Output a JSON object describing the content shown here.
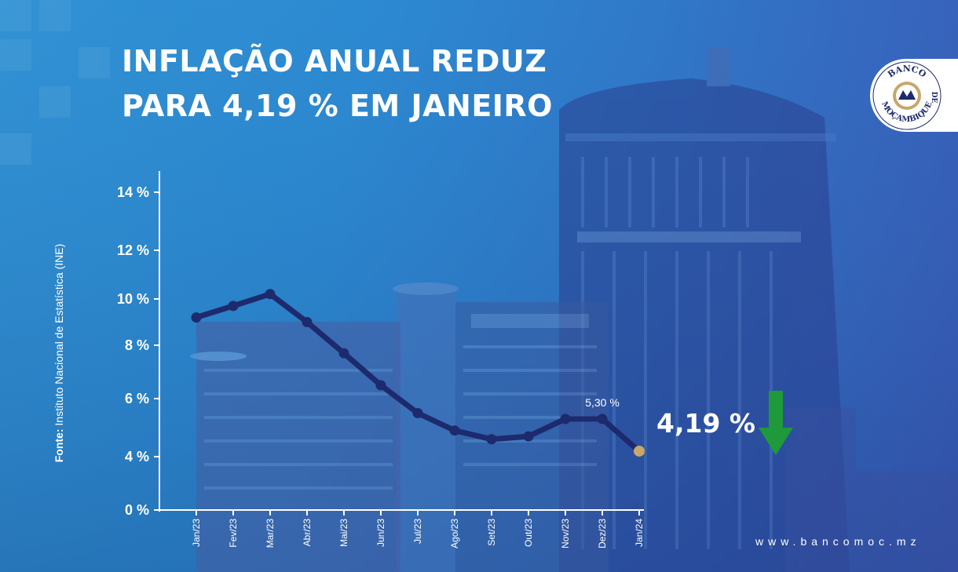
{
  "title": {
    "line1": "INFLAÇÃO ANUAL REDUZ",
    "line2": "PARA 4,19 % EM JANEIRO"
  },
  "source": {
    "prefix": "Fonte:",
    "text": " Instituto Nacional de Estatística (INE)"
  },
  "logo": {
    "top_text": "BANCO",
    "middle_text": "DE",
    "bottom_text": "MOÇAMBIQUE"
  },
  "website": "www.bancomoc.mz",
  "current_value_label": "4,19 %",
  "colors": {
    "line": "#1d2a6e",
    "highlight_point": "#c9a66b",
    "arrow": "#1e9a3a",
    "text": "#ffffff"
  },
  "chart_data": {
    "type": "line",
    "categories": [
      "Jan/23",
      "Fev/23",
      "Mar/23",
      "Abr/23",
      "Mai/23",
      "Jun/23",
      "Jul/23",
      "Ago/23",
      "Set/23",
      "Out/23",
      "Nov/23",
      "Dez/23",
      "Jan/24"
    ],
    "values": [
      9.2,
      9.7,
      10.2,
      9.0,
      7.7,
      6.5,
      5.5,
      4.9,
      4.6,
      4.7,
      5.3,
      5.3,
      4.19
    ],
    "y_ticks": [
      0,
      4,
      6,
      8,
      10,
      12,
      14
    ],
    "y_tick_labels": [
      "0 %",
      "4 %",
      "6 %",
      "8 %",
      "10 %",
      "12 %",
      "14 %"
    ],
    "ylim": [
      0,
      14
    ],
    "data_labels": [
      {
        "category": "Dez/23",
        "text": "5,30 %"
      }
    ],
    "highlight_category": "Jan/24",
    "grid": false
  }
}
